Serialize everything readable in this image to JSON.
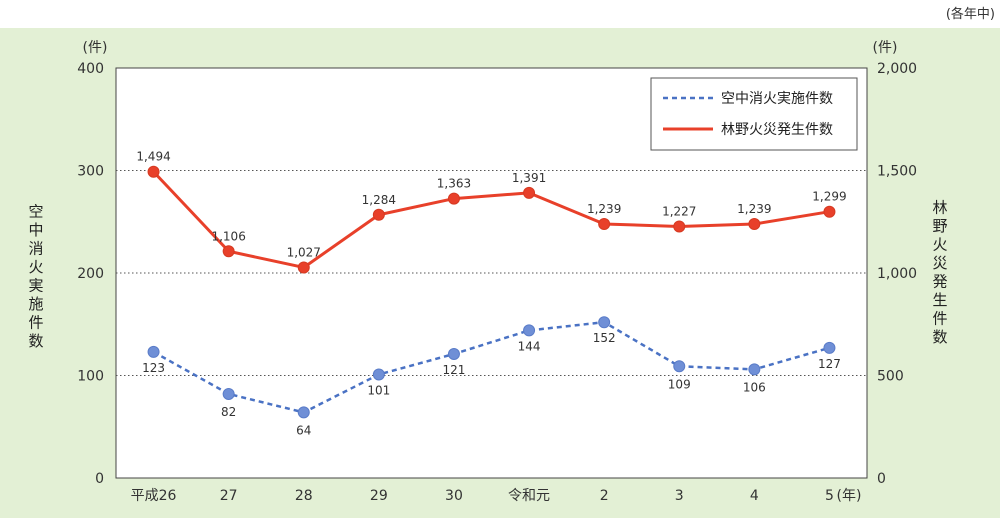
{
  "note": "(各年中)",
  "chart_data": {
    "type": "line",
    "categories": [
      "平成26",
      "27",
      "28",
      "29",
      "30",
      "令和元",
      "2",
      "3",
      "4",
      "5"
    ],
    "x_unit": "(年)",
    "series": [
      {
        "name": "空中消火実施件数",
        "axis": "left",
        "style": "dashed",
        "color": "#4a72c4",
        "marker_color": "#6f8fd6",
        "values": [
          123,
          82,
          64,
          101,
          121,
          144,
          152,
          109,
          106,
          127
        ],
        "labels": [
          "123",
          "82",
          "64",
          "101",
          "121",
          "144",
          "152",
          "109",
          "106",
          "127"
        ]
      },
      {
        "name": "林野火災発生件数",
        "axis": "right",
        "style": "solid",
        "color": "#e8402a",
        "marker_color": "#e8402a",
        "values": [
          1494,
          1106,
          1027,
          1284,
          1363,
          1391,
          1239,
          1227,
          1239,
          1299
        ],
        "labels": [
          "1,494",
          "1,106",
          "1,027",
          "1,284",
          "1,363",
          "1,391",
          "1,239",
          "1,227",
          "1,239",
          "1,299"
        ]
      }
    ],
    "y_left": {
      "label": "空中消火実施件数",
      "unit": "(件)",
      "ylim": [
        0,
        400
      ],
      "ticks": [
        0,
        100,
        200,
        300,
        400
      ],
      "tick_labels": [
        "0",
        "100",
        "200",
        "300",
        "400"
      ]
    },
    "y_right": {
      "label": "林野火災発生件数",
      "unit": "(件)",
      "ylim": [
        0,
        2000
      ],
      "ticks": [
        0,
        500,
        1000,
        1500,
        2000
      ],
      "tick_labels": [
        "0",
        "500",
        "1,000",
        "1,500",
        "2,000"
      ]
    },
    "grid": "horizontal-dotted",
    "legend": "top-right",
    "colors": {
      "background": "#e3f0d5",
      "plot": "#ffffff"
    }
  }
}
